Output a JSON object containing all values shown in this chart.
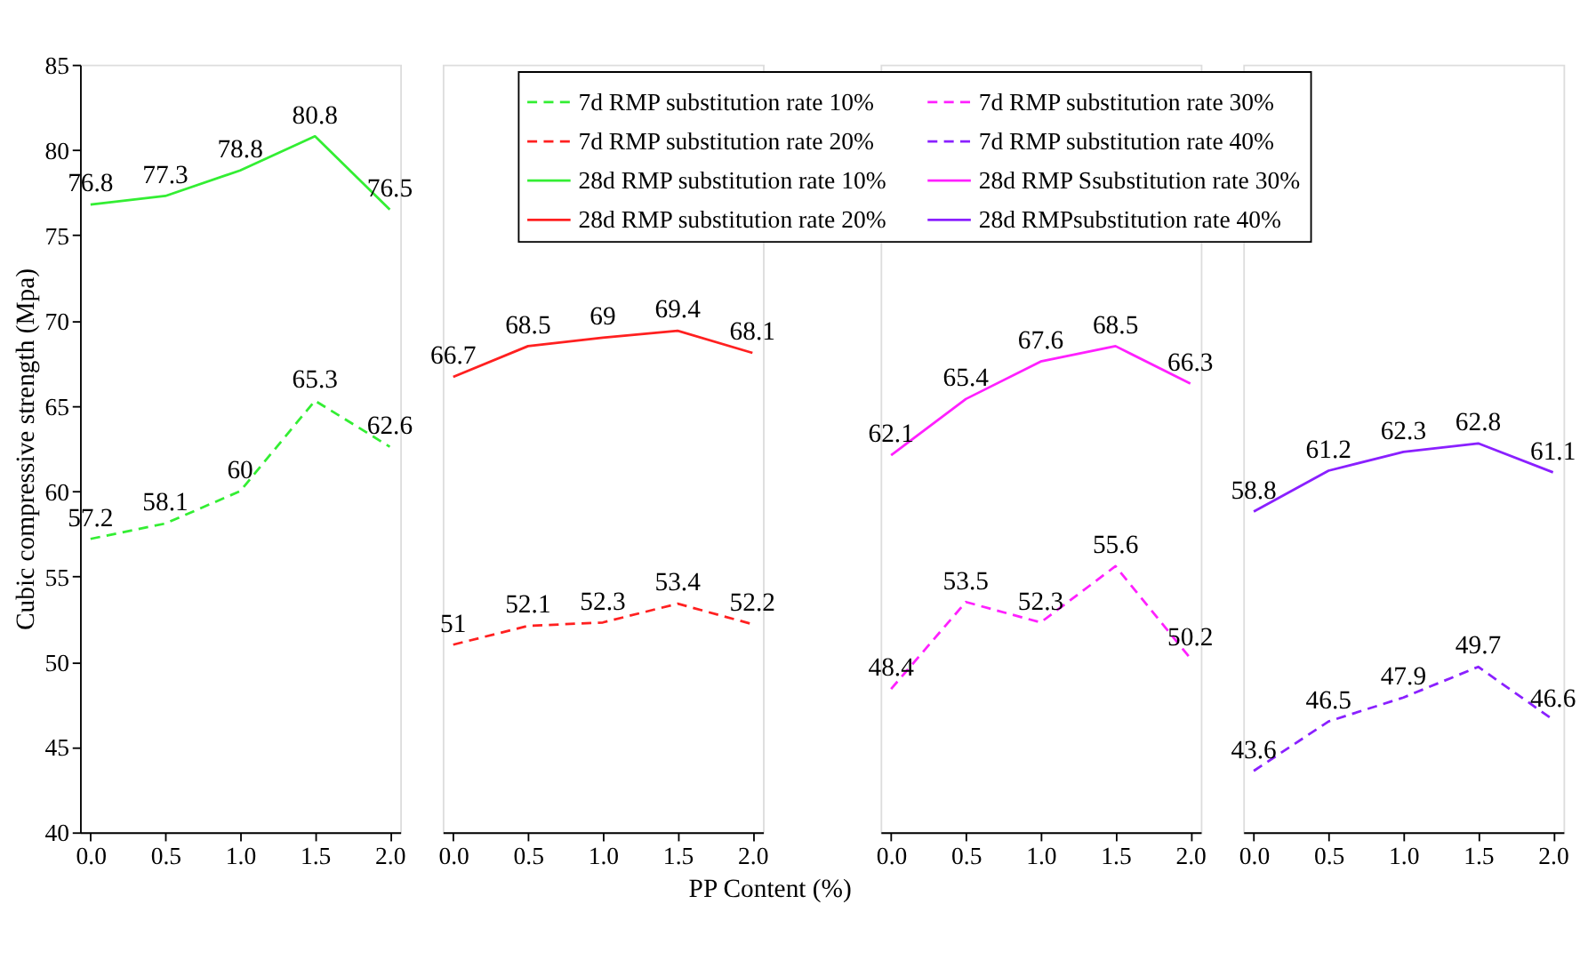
{
  "chart_data": [
    {
      "type": "line",
      "ylabel": "Cubic compressive strength (Mpa)",
      "xlim": [
        -0.07,
        2.07
      ],
      "xticks": [
        {
          "value": 0,
          "label": "0.0"
        },
        {
          "value": 0.5,
          "label": "0.5"
        },
        {
          "value": 1,
          "label": "1.0"
        },
        {
          "value": 1.5,
          "label": "1.5"
        },
        {
          "value": 2,
          "label": "2.0"
        }
      ],
      "ylim": [
        40,
        85
      ],
      "yticks": [
        40,
        45,
        50,
        55,
        60,
        65,
        70,
        75,
        80,
        85
      ],
      "grid": false,
      "legend": "top right",
      "data_labels": true,
      "series": [
        {
          "name": "7d RMP substitution rate 10%",
          "color": "#33ee33",
          "line_style": "dashed",
          "x": [
            0,
            0.5,
            1,
            1.5,
            2
          ],
          "values": [
            57.2,
            58.1,
            60,
            65.3,
            62.6
          ]
        },
        {
          "name": "28d RMP substitution rate 10%",
          "color": "#33ee33",
          "line_style": "solid",
          "x": [
            0,
            0.5,
            1,
            1.5,
            2
          ],
          "values": [
            76.8,
            77.3,
            78.8,
            80.8,
            76.5
          ]
        }
      ]
    },
    {
      "type": "line",
      "xlabel": "PP Content (%)",
      "xlim": [
        -0.07,
        2.07
      ],
      "xticks": [
        {
          "value": 0,
          "label": "0.0"
        },
        {
          "value": 0.5,
          "label": "0.5"
        },
        {
          "value": 1,
          "label": "1.0"
        },
        {
          "value": 1.5,
          "label": "1.5"
        },
        {
          "value": 2,
          "label": "2.0"
        }
      ],
      "ylim": [
        40,
        85
      ],
      "tick_labels": "x",
      "grid": false,
      "legend": "top",
      "data_labels": true,
      "series": [
        {
          "name": "7d RMP substitution rate 20%",
          "color": "#ff2020",
          "line_style": "dashed",
          "x": [
            0,
            0.5,
            1,
            1.5,
            2
          ],
          "values": [
            51,
            52.1,
            52.3,
            53.4,
            52.2
          ]
        },
        {
          "name": "28d RMP substitution rate 20%",
          "color": "#ff2020",
          "line_style": "solid",
          "x": [
            0,
            0.5,
            1,
            1.5,
            2
          ],
          "values": [
            66.7,
            68.5,
            69,
            69.4,
            68.1
          ]
        }
      ]
    },
    {
      "type": "line",
      "xlim": [
        -0.07,
        2.07
      ],
      "xticks": [
        {
          "value": 0,
          "label": "0.0"
        },
        {
          "value": 0.5,
          "label": "0.5"
        },
        {
          "value": 1,
          "label": "1.0"
        },
        {
          "value": 1.5,
          "label": "1.5"
        },
        {
          "value": 2,
          "label": "2.0"
        }
      ],
      "ylim": [
        40,
        85
      ],
      "tick_labels": "x",
      "grid": false,
      "legend": "top",
      "data_labels": true,
      "series": [
        {
          "name": "7d RMP substitution rate 30%",
          "color": "#ff20ff",
          "line_style": "dashed",
          "x": [
            0,
            0.5,
            1,
            1.5,
            2
          ],
          "values": [
            48.4,
            53.5,
            52.3,
            55.6,
            50.2
          ]
        },
        {
          "name": "28d RMP Ssubstitution rate 30%",
          "color": "#ff20ff",
          "line_style": "solid",
          "x": [
            0,
            0.5,
            1,
            1.5,
            2
          ],
          "values": [
            62.1,
            65.4,
            67.6,
            68.5,
            66.3
          ]
        }
      ]
    },
    {
      "type": "line",
      "xlim": [
        -0.07,
        2.07
      ],
      "xticks": [
        {
          "value": 0,
          "label": "0.0"
        },
        {
          "value": 0.5,
          "label": "0.5"
        },
        {
          "value": 1,
          "label": "1.0"
        },
        {
          "value": 1.5,
          "label": "1.5"
        },
        {
          "value": 2,
          "label": "2.0"
        }
      ],
      "ylim": [
        40,
        85
      ],
      "tick_labels": "x",
      "grid": false,
      "legend": "top left",
      "data_labels": true,
      "series": [
        {
          "name": "7d RMP substitution rate 40%",
          "color": "#8a20ff",
          "line_style": "dashed",
          "x": [
            0,
            0.5,
            1,
            1.5,
            2
          ],
          "values": [
            43.6,
            46.5,
            47.9,
            49.7,
            46.6
          ]
        },
        {
          "name": "28d RMPsubstitution rate 40%",
          "color": "#8a20ff",
          "line_style": "solid",
          "x": [
            0,
            0.5,
            1,
            1.5,
            2
          ],
          "values": [
            58.8,
            61.2,
            62.3,
            62.8,
            61.1
          ]
        }
      ]
    }
  ]
}
